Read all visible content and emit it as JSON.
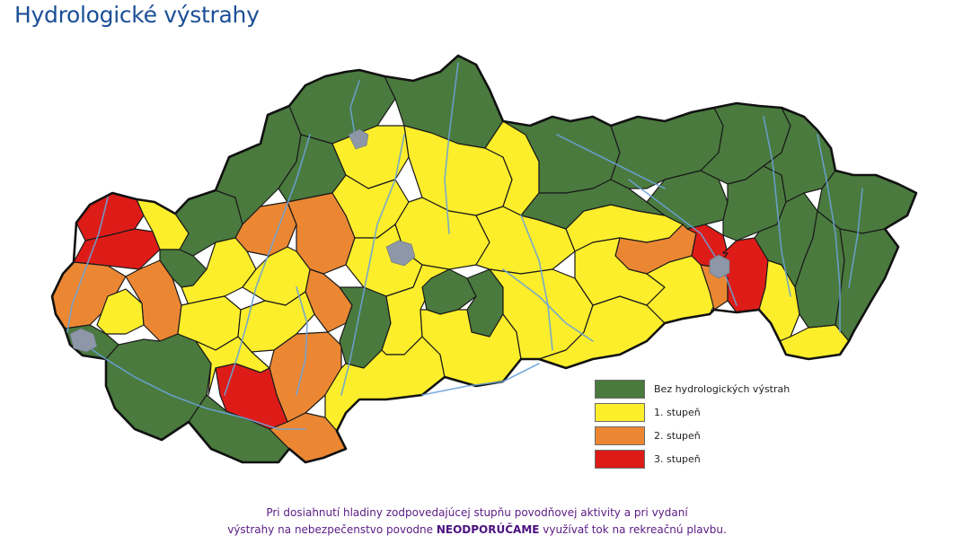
{
  "page": {
    "title": "Hydrologické výstrahy"
  },
  "colors": {
    "none": "#4a7a3e",
    "level1": "#fcee2b",
    "level2": "#eb8733",
    "level3": "#dd1c18"
  },
  "legend": [
    {
      "key": "none",
      "label": "Bez hydrologických výstrah",
      "color": "#4a7a3e"
    },
    {
      "key": "level1",
      "label": "1. stupeň",
      "color": "#fcee2b"
    },
    {
      "key": "level2",
      "label": "2. stupeň",
      "color": "#eb8733"
    },
    {
      "key": "level3",
      "label": "3. stupeň",
      "color": "#dd1c18"
    }
  ],
  "notice": {
    "line1": "Pri dosiahnutí hladiny zodpovedajúcej stupňu povodňovej aktivity a pri vydaní",
    "line2_before": "výstrahy na nebezpečenstvo povodne ",
    "line2_strong": "NEODPORÚČAME",
    "line2_after": " využívať tok na rekreačnú plavbu."
  }
}
